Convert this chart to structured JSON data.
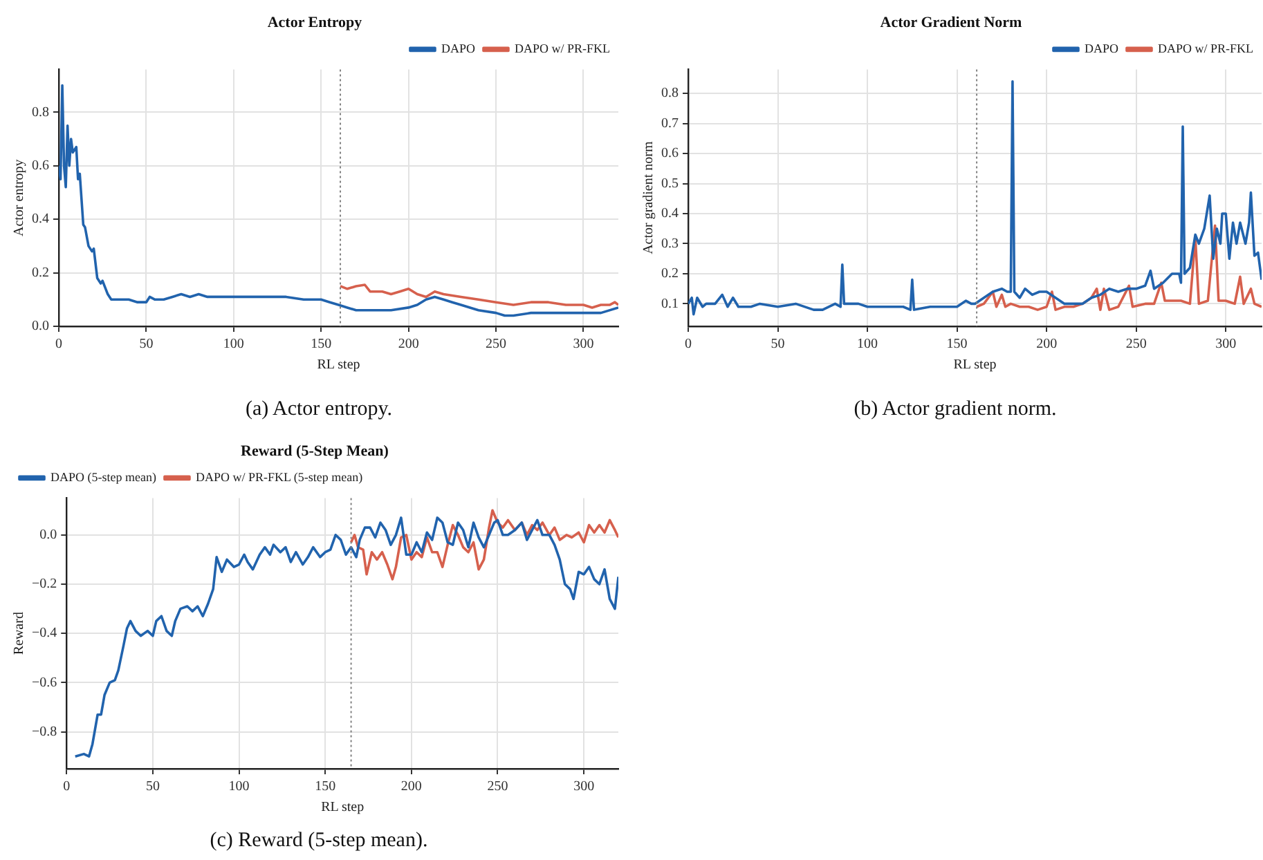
{
  "chart_data": [
    {
      "type": "line",
      "title": "Actor Entropy",
      "xlabel": "RL step",
      "ylabel": "Actor entropy",
      "annotations": [
        "(a) Actor entropy."
      ],
      "xlim": [
        0,
        320
      ],
      "xticks": [
        0,
        50,
        100,
        150,
        200,
        250,
        300
      ],
      "ylim": [
        0,
        0.96
      ],
      "yticks": [
        {
          "value": 0,
          "label": "0.0"
        },
        0.2,
        0.4,
        0.6,
        0.8
      ],
      "grid": true,
      "legend": "top right",
      "line_style": "solid",
      "ref_lines": [
        {
          "axis": "x",
          "value": 161,
          "color": "#808080",
          "line_style": "dotted"
        }
      ],
      "series": [
        {
          "name": "DAPO",
          "color": "#2163ad",
          "x": [
            0,
            1,
            2,
            3,
            4,
            5,
            6,
            7,
            8,
            10,
            11,
            12,
            14,
            15,
            17,
            19,
            20,
            22,
            24,
            25,
            28,
            30,
            35,
            40,
            45,
            50,
            52,
            55,
            60,
            65,
            70,
            75,
            80,
            85,
            90,
            100,
            110,
            120,
            130,
            140,
            150,
            155,
            160,
            165,
            170,
            175,
            180,
            190,
            200,
            205,
            210,
            215,
            220,
            225,
            230,
            240,
            250,
            255,
            260,
            270,
            280,
            290,
            295,
            300,
            310,
            320
          ],
          "values": [
            0.6,
            0.55,
            0.9,
            0.6,
            0.52,
            0.75,
            0.6,
            0.7,
            0.65,
            0.67,
            0.55,
            0.57,
            0.38,
            0.37,
            0.3,
            0.28,
            0.29,
            0.18,
            0.16,
            0.17,
            0.12,
            0.1,
            0.1,
            0.1,
            0.09,
            0.09,
            0.11,
            0.1,
            0.1,
            0.11,
            0.12,
            0.11,
            0.12,
            0.11,
            0.11,
            0.11,
            0.11,
            0.11,
            0.11,
            0.1,
            0.1,
            0.09,
            0.08,
            0.07,
            0.06,
            0.06,
            0.06,
            0.06,
            0.07,
            0.08,
            0.1,
            0.11,
            0.1,
            0.09,
            0.08,
            0.06,
            0.05,
            0.04,
            0.04,
            0.05,
            0.05,
            0.05,
            0.05,
            0.05,
            0.05,
            0.07
          ]
        },
        {
          "name": "DAPO w/ PR-FKL",
          "color": "#d6604d",
          "x": [
            161,
            165,
            170,
            175,
            178,
            185,
            190,
            195,
            200,
            205,
            210,
            215,
            220,
            230,
            240,
            250,
            260,
            270,
            280,
            290,
            300,
            305,
            310,
            315,
            318,
            320
          ],
          "values": [
            0.15,
            0.14,
            0.15,
            0.155,
            0.13,
            0.13,
            0.12,
            0.13,
            0.14,
            0.12,
            0.11,
            0.13,
            0.12,
            0.11,
            0.1,
            0.09,
            0.08,
            0.09,
            0.09,
            0.08,
            0.08,
            0.07,
            0.08,
            0.08,
            0.09,
            0.08
          ]
        }
      ]
    },
    {
      "type": "line",
      "title": "Actor Gradient Norm",
      "xlabel": "RL step",
      "ylabel": "Actor gradient norm",
      "annotations": [
        "(b) Actor gradient norm."
      ],
      "xlim": [
        0,
        320
      ],
      "xticks": [
        0,
        50,
        100,
        150,
        200,
        250,
        300
      ],
      "ylim": [
        0.025,
        0.88
      ],
      "yticks": [
        0.1,
        0.2,
        0.3,
        0.4,
        0.5,
        0.6,
        0.7,
        0.8
      ],
      "grid": true,
      "legend": "top right",
      "line_style": "solid",
      "ref_lines": [
        {
          "axis": "x",
          "value": 161,
          "color": "#808080",
          "line_style": "dotted"
        }
      ],
      "series": [
        {
          "name": "DAPO",
          "color": "#2163ad",
          "x": [
            0,
            2,
            3,
            5,
            8,
            10,
            15,
            19,
            22,
            25,
            28,
            35,
            40,
            50,
            60,
            70,
            75,
            82,
            85,
            86,
            87,
            95,
            100,
            110,
            120,
            124,
            125,
            126,
            135,
            145,
            150,
            155,
            158,
            160,
            165,
            170,
            175,
            178,
            180,
            181,
            182,
            185,
            188,
            192,
            196,
            200,
            205,
            210,
            215,
            220,
            225,
            230,
            235,
            240,
            245,
            250,
            255,
            258,
            260,
            265,
            270,
            274,
            275,
            276,
            277,
            280,
            283,
            285,
            288,
            291,
            293,
            295,
            297,
            298,
            300,
            302,
            304,
            306,
            308,
            311,
            313,
            314,
            316,
            318,
            320
          ],
          "values": [
            0.1,
            0.12,
            0.065,
            0.12,
            0.09,
            0.1,
            0.1,
            0.13,
            0.09,
            0.12,
            0.09,
            0.09,
            0.1,
            0.09,
            0.1,
            0.08,
            0.08,
            0.1,
            0.09,
            0.23,
            0.1,
            0.1,
            0.09,
            0.09,
            0.09,
            0.08,
            0.18,
            0.08,
            0.09,
            0.09,
            0.09,
            0.11,
            0.1,
            0.1,
            0.12,
            0.14,
            0.15,
            0.14,
            0.14,
            0.84,
            0.14,
            0.12,
            0.15,
            0.13,
            0.14,
            0.14,
            0.12,
            0.1,
            0.1,
            0.1,
            0.12,
            0.13,
            0.15,
            0.14,
            0.15,
            0.15,
            0.16,
            0.21,
            0.15,
            0.17,
            0.2,
            0.2,
            0.17,
            0.69,
            0.2,
            0.22,
            0.33,
            0.3,
            0.35,
            0.46,
            0.25,
            0.35,
            0.3,
            0.4,
            0.4,
            0.25,
            0.37,
            0.3,
            0.37,
            0.3,
            0.37,
            0.47,
            0.26,
            0.27,
            0.18
          ]
        },
        {
          "name": "DAPO w/ PR-FKL",
          "color": "#d6604d",
          "x": [
            161,
            165,
            170,
            172,
            175,
            177,
            180,
            185,
            190,
            195,
            200,
            203,
            205,
            210,
            215,
            220,
            225,
            228,
            230,
            232,
            235,
            240,
            246,
            248,
            255,
            260,
            264,
            266,
            270,
            275,
            280,
            283,
            285,
            290,
            294,
            296,
            300,
            305,
            308,
            310,
            314,
            316,
            320
          ],
          "values": [
            0.09,
            0.1,
            0.14,
            0.09,
            0.13,
            0.09,
            0.1,
            0.09,
            0.09,
            0.08,
            0.09,
            0.14,
            0.08,
            0.09,
            0.09,
            0.1,
            0.12,
            0.15,
            0.08,
            0.15,
            0.08,
            0.09,
            0.16,
            0.09,
            0.1,
            0.1,
            0.17,
            0.11,
            0.11,
            0.11,
            0.1,
            0.32,
            0.1,
            0.11,
            0.36,
            0.11,
            0.11,
            0.1,
            0.19,
            0.1,
            0.15,
            0.1,
            0.09
          ]
        }
      ]
    },
    {
      "type": "line",
      "title": "Reward (5-Step Mean)",
      "xlabel": "RL step",
      "ylabel": "Reward",
      "annotations": [
        "(c) Reward (5-step mean)."
      ],
      "xlim": [
        0,
        320
      ],
      "xticks": [
        0,
        50,
        100,
        150,
        200,
        250,
        300
      ],
      "ylim": [
        -0.95,
        0.15
      ],
      "yticks": [
        {
          "value": -0.8,
          "label": "−0.8"
        },
        {
          "value": -0.6,
          "label": "−0.6"
        },
        {
          "value": -0.4,
          "label": "−0.4"
        },
        {
          "value": -0.2,
          "label": "−0.2"
        },
        {
          "value": 0,
          "label": "0.0"
        }
      ],
      "grid": true,
      "legend": "top left",
      "line_style": "solid",
      "ref_lines": [
        {
          "axis": "x",
          "value": 165,
          "color": "#808080",
          "line_style": "dotted"
        }
      ],
      "series": [
        {
          "name": "DAPO (5-step mean)",
          "color": "#2163ad",
          "x": [
            5,
            10,
            13,
            15,
            18,
            20,
            22,
            25,
            28,
            30,
            33,
            35,
            37,
            40,
            43,
            47,
            50,
            52,
            55,
            58,
            61,
            63,
            66,
            70,
            73,
            76,
            79,
            82,
            85,
            87,
            90,
            93,
            97,
            100,
            103,
            105,
            108,
            112,
            115,
            118,
            120,
            124,
            127,
            130,
            133,
            137,
            140,
            143,
            147,
            150,
            153,
            156,
            159,
            162,
            165,
            168,
            170,
            173,
            176,
            179,
            182,
            185,
            188,
            191,
            194,
            197,
            200,
            203,
            206,
            209,
            212,
            215,
            218,
            221,
            224,
            227,
            230,
            233,
            236,
            239,
            242,
            245,
            248,
            250,
            253,
            256,
            260,
            264,
            267,
            270,
            273,
            276,
            280,
            283,
            286,
            289,
            292,
            294,
            297,
            300,
            303,
            306,
            309,
            312,
            315,
            318,
            320
          ],
          "values": [
            -0.9,
            -0.89,
            -0.9,
            -0.85,
            -0.73,
            -0.73,
            -0.65,
            -0.6,
            -0.59,
            -0.55,
            -0.45,
            -0.38,
            -0.35,
            -0.39,
            -0.41,
            -0.39,
            -0.41,
            -0.35,
            -0.33,
            -0.39,
            -0.41,
            -0.35,
            -0.3,
            -0.29,
            -0.31,
            -0.29,
            -0.33,
            -0.28,
            -0.22,
            -0.09,
            -0.15,
            -0.1,
            -0.13,
            -0.12,
            -0.08,
            -0.11,
            -0.14,
            -0.08,
            -0.05,
            -0.08,
            -0.04,
            -0.07,
            -0.05,
            -0.11,
            -0.07,
            -0.12,
            -0.09,
            -0.05,
            -0.09,
            -0.07,
            -0.06,
            0.0,
            -0.02,
            -0.08,
            -0.05,
            -0.09,
            -0.02,
            0.03,
            0.03,
            -0.01,
            0.05,
            0.02,
            -0.04,
            0.0,
            0.07,
            -0.08,
            -0.08,
            -0.03,
            -0.07,
            0.01,
            -0.02,
            0.07,
            0.05,
            -0.03,
            -0.04,
            0.05,
            0.02,
            -0.05,
            0.05,
            -0.01,
            -0.05,
            0.0,
            0.05,
            0.06,
            0.0,
            0.0,
            0.02,
            0.05,
            -0.02,
            0.02,
            0.06,
            0.0,
            0.0,
            -0.04,
            -0.1,
            -0.2,
            -0.22,
            -0.26,
            -0.15,
            -0.16,
            -0.13,
            -0.18,
            -0.2,
            -0.14,
            -0.26,
            -0.3,
            -0.17
          ]
        },
        {
          "name": "DAPO w/ PR-FKL (5-step mean)",
          "color": "#d6604d",
          "x": [
            165,
            167,
            169,
            172,
            174,
            177,
            180,
            183,
            186,
            189,
            191,
            194,
            197,
            200,
            203,
            206,
            209,
            212,
            215,
            218,
            221,
            224,
            227,
            230,
            233,
            236,
            239,
            242,
            245,
            247,
            250,
            253,
            256,
            260,
            264,
            267,
            270,
            273,
            276,
            280,
            283,
            286,
            290,
            293,
            297,
            300,
            303,
            306,
            309,
            312,
            315,
            318,
            320
          ],
          "values": [
            -0.03,
            0.0,
            -0.05,
            -0.06,
            -0.16,
            -0.07,
            -0.1,
            -0.07,
            -0.12,
            -0.18,
            -0.13,
            -0.01,
            0.0,
            -0.1,
            -0.07,
            -0.09,
            -0.01,
            -0.07,
            -0.07,
            -0.13,
            -0.04,
            0.04,
            0.0,
            -0.05,
            -0.07,
            -0.03,
            -0.14,
            -0.1,
            0.03,
            0.1,
            0.05,
            0.03,
            0.06,
            0.02,
            0.05,
            0.0,
            0.04,
            0.02,
            0.05,
            0.0,
            0.03,
            -0.02,
            0.0,
            -0.01,
            0.01,
            -0.03,
            0.04,
            0.01,
            0.04,
            0.01,
            0.06,
            0.02,
            -0.01
          ]
        }
      ]
    }
  ]
}
